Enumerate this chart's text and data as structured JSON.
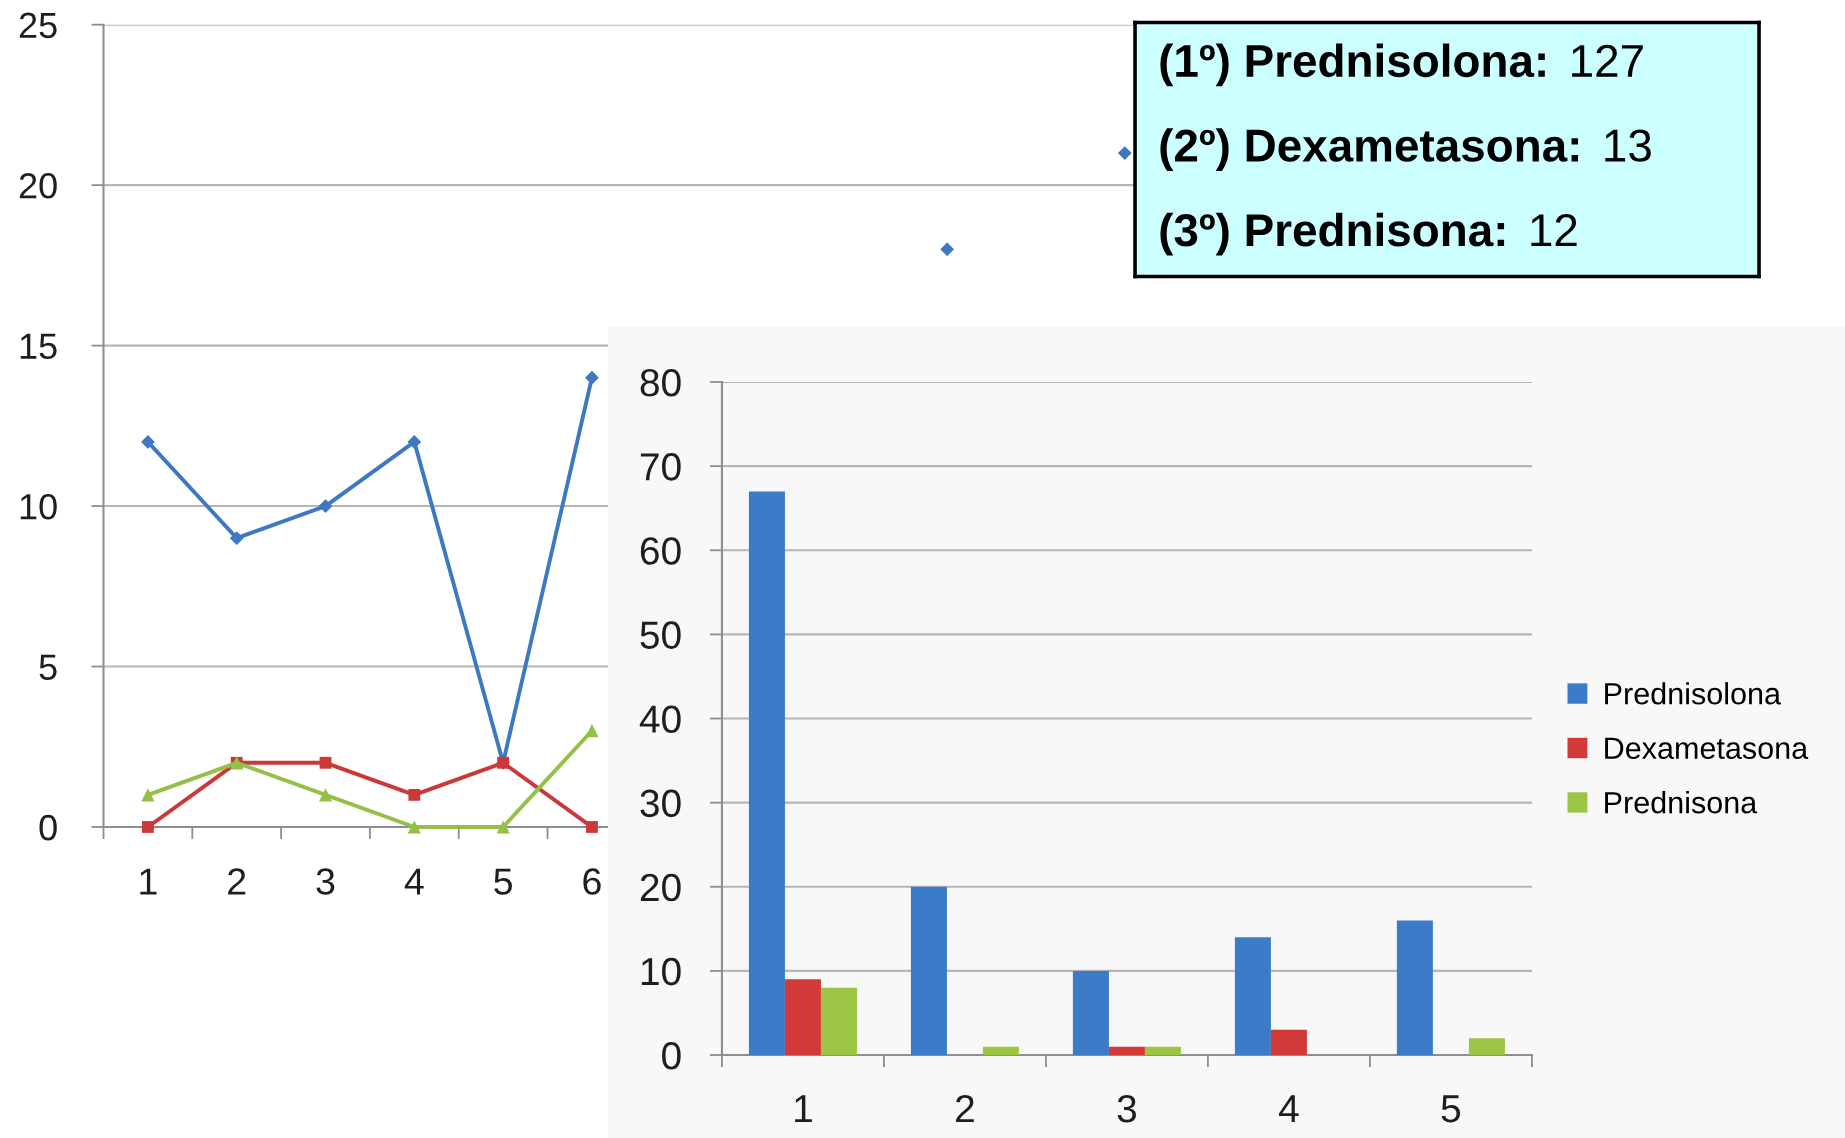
{
  "chart_data": [
    {
      "type": "line",
      "categories": [
        "1",
        "2",
        "3",
        "4",
        "5",
        "6",
        null,
        null,
        null,
        null,
        null,
        null,
        null,
        null,
        null
      ],
      "series": [
        {
          "color": "#3d78c2",
          "marker": "diamond",
          "values": [
            12,
            9,
            10,
            12,
            2,
            14,
            null,
            null,
            null,
            18,
            null,
            21,
            null,
            null,
            null
          ]
        },
        {
          "color": "#cc3838",
          "marker": "square",
          "values": [
            0,
            2,
            2,
            1,
            2,
            0,
            null,
            null,
            null,
            null,
            null,
            null,
            null,
            null,
            null
          ]
        },
        {
          "color": "#94c047",
          "marker": "triangle",
          "values": [
            1,
            2,
            1,
            0,
            0,
            3,
            null,
            null,
            null,
            null,
            null,
            null,
            null,
            null,
            null
          ]
        }
      ],
      "ylim": [
        0,
        25
      ],
      "yticks": [
        0,
        5,
        10,
        15,
        20,
        25
      ],
      "grid": "y",
      "line_style": "solid"
    },
    {
      "type": "other",
      "annotations": [
        "(1º) Prednisolona: 127",
        "(2º) Dexametasona: 13",
        "(3º) Prednisona: 12"
      ]
    },
    {
      "type": "bar",
      "categories": [
        "1",
        "2",
        "3",
        "4",
        "5"
      ],
      "series": [
        {
          "name": "Prednisolona",
          "color": "#3b7bc8",
          "values": [
            67,
            20,
            10,
            14,
            16
          ]
        },
        {
          "name": "Dexametasona",
          "color": "#d23a3a",
          "values": [
            9,
            0,
            1,
            3,
            0
          ]
        },
        {
          "name": "Prednisona",
          "color": "#9cc544",
          "values": [
            8,
            1,
            1,
            0,
            2
          ]
        }
      ],
      "ylim": [
        0,
        80
      ],
      "yticks": [
        0,
        10,
        20,
        30,
        40,
        50,
        60,
        70,
        80
      ],
      "grid": "y",
      "legend": "right"
    }
  ]
}
